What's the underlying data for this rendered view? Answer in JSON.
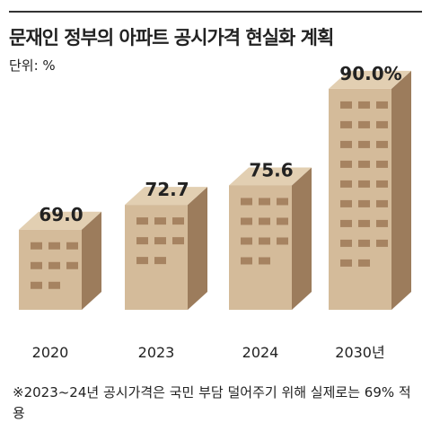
{
  "title": "문재인 정부의 아파트 공시가격 현실화 계획",
  "unit": "단위: %",
  "note": "※2023~24년 공시가격은 국민 부담 덜어주기 위해 실제로는 69% 적용",
  "colors": {
    "front": "#d4bb9a",
    "top": "#e2cfb2",
    "side": "#9c7c5c",
    "window": "#a68361",
    "text": "#222222"
  },
  "chart_data": {
    "type": "bar",
    "categories": [
      "2020",
      "2023",
      "2024",
      "2030년"
    ],
    "values": [
      69.0,
      72.7,
      75.6,
      90.0
    ],
    "value_labels": [
      "69.0",
      "72.7",
      "75.6",
      "90.0%"
    ],
    "title": "문재인 정부의 아파트 공시가격 현실화 계획",
    "ylabel": "단위: %",
    "grid": false,
    "legend": "none"
  }
}
